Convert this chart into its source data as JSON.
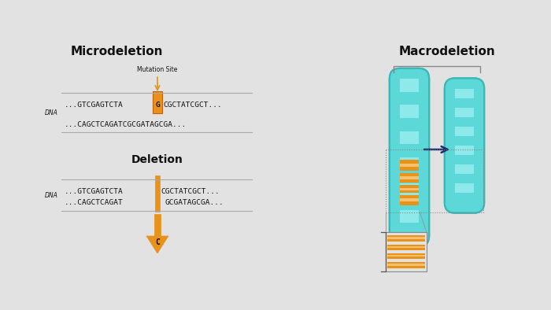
{
  "bg_color": "#e2e2e2",
  "title_micro": "Microdeletion",
  "title_macro": "Macrodeletion",
  "mutation_site_label": "Mutation Site",
  "dna_label": "DNA",
  "deletion_label": "Deletion",
  "arrow_color": "#E8921A",
  "chromosome_teal": "#5DD8D8",
  "chromosome_teal_light": "#8EEAEA",
  "chromosome_teal_dark": "#3BB8B8",
  "chromosome_orange": "#E8921A",
  "chromosome_orange_light": "#F5C070",
  "arrow_dark": "#1A2D6B",
  "line_color": "#aaaaaa",
  "bracket_color": "#888888",
  "text_color": "#111111"
}
